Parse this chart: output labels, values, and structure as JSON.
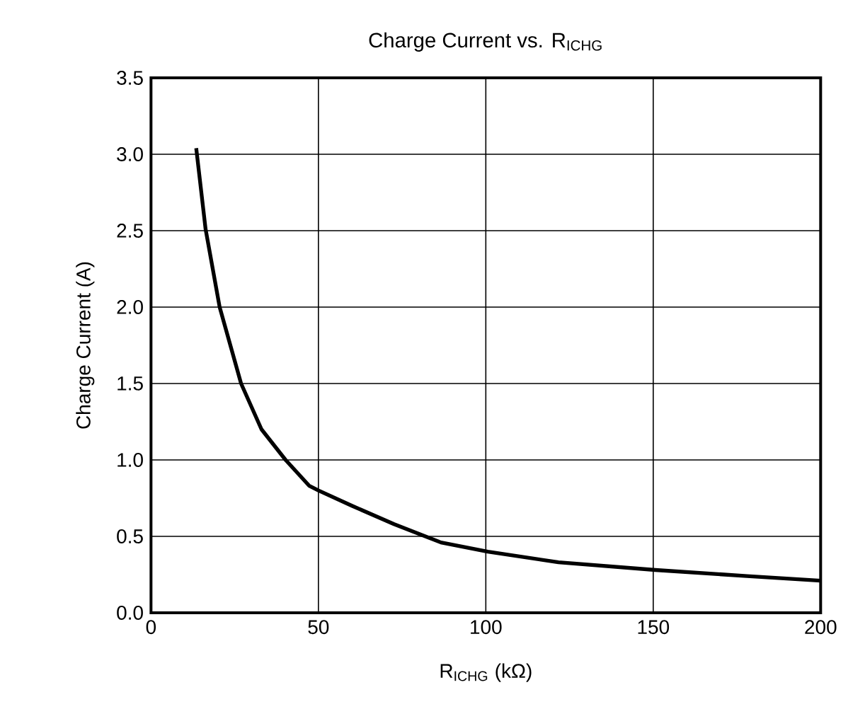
{
  "chart_data": {
    "type": "line",
    "title": "Charge Current vs. R$_{ICHG}$",
    "xlabel": "R$_{ICHG}$ (kΩ)",
    "ylabel": "Charge Current (A)",
    "series": [
      {
        "color": "#000000",
        "x": [
          13.5,
          16.3,
          20.5,
          26.9,
          33,
          40.2,
          47.3,
          50,
          60,
          72.6,
          86.6,
          100.6,
          121.7,
          150.6,
          178,
          200
        ],
        "values": [
          3.04,
          2.51,
          2.0,
          1.5,
          1.2,
          1.0,
          0.83,
          0.8,
          0.7,
          0.58,
          0.46,
          0.4,
          0.33,
          0.28,
          0.24,
          0.21
        ]
      }
    ],
    "xlim": [
      0,
      200
    ],
    "ylim": [
      0,
      3.5
    ],
    "xticks": [
      0,
      50,
      100,
      150,
      200
    ],
    "yticks": [
      {
        "value": 0,
        "label": "0.0"
      },
      {
        "value": 0.5,
        "label": "0.5"
      },
      {
        "value": 1,
        "label": "1.0"
      },
      {
        "value": 1.5,
        "label": "1.5"
      },
      {
        "value": 2,
        "label": "2.0"
      },
      {
        "value": 2.5,
        "label": "2.5"
      },
      {
        "value": 3,
        "label": "3.0"
      },
      {
        "value": 3.5,
        "label": "3.5"
      }
    ],
    "grid": true,
    "marker": "none",
    "line_style": "solid"
  }
}
